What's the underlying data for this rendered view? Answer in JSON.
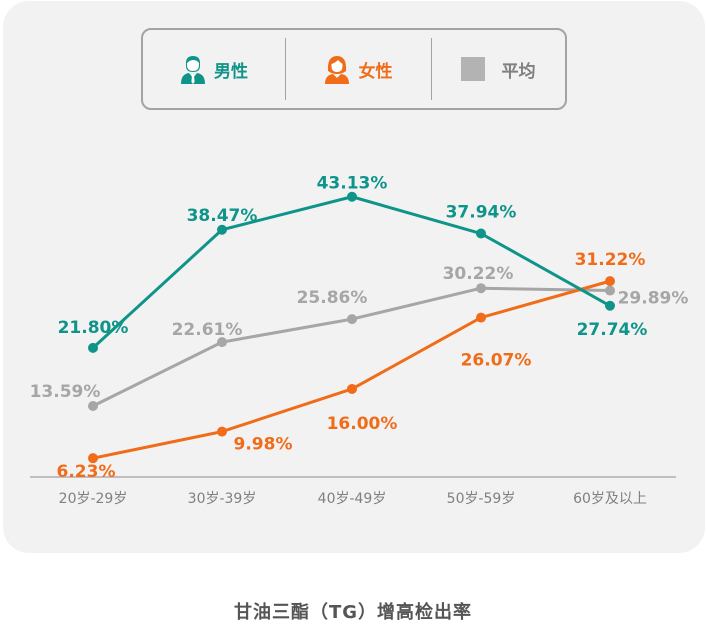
{
  "chart_data": {
    "type": "line",
    "categories": [
      "20岁-29岁",
      "30岁-39岁",
      "40岁-49岁",
      "50岁-59岁",
      "60岁及以上"
    ],
    "ylim": [
      0,
      50
    ],
    "series": [
      {
        "name": "男性",
        "color": "#0f9489",
        "values": [
          21.8,
          38.47,
          43.13,
          37.94,
          27.74
        ],
        "labels": [
          "21.80%",
          "38.47%",
          "43.13%",
          "37.94%",
          "27.74%"
        ]
      },
      {
        "name": "女性",
        "color": "#f06c19",
        "values": [
          6.23,
          9.98,
          16.0,
          26.07,
          31.22
        ],
        "labels": [
          "6.23%",
          "9.98%",
          "16.00%",
          "26.07%",
          "31.22%"
        ]
      },
      {
        "name": "平均",
        "color": "#a6a6a6",
        "values": [
          13.59,
          22.61,
          25.86,
          30.22,
          29.89
        ],
        "labels": [
          "13.59%",
          "22.61%",
          "25.86%",
          "30.22%",
          "29.89%"
        ]
      }
    ],
    "legend_position": "top",
    "grid": false
  },
  "legend": {
    "male_label": "男性",
    "female_label": "女性",
    "avg_label": "平均",
    "male_icon": "male-user-icon",
    "female_icon": "female-user-icon"
  },
  "caption": "甘油三酯（TG）增高检出率",
  "colors": {
    "male": "#0f9489",
    "female": "#f06c19",
    "average": "#a6a6a6",
    "axis": "#bfbfbf",
    "background": "#f2f2f2"
  }
}
